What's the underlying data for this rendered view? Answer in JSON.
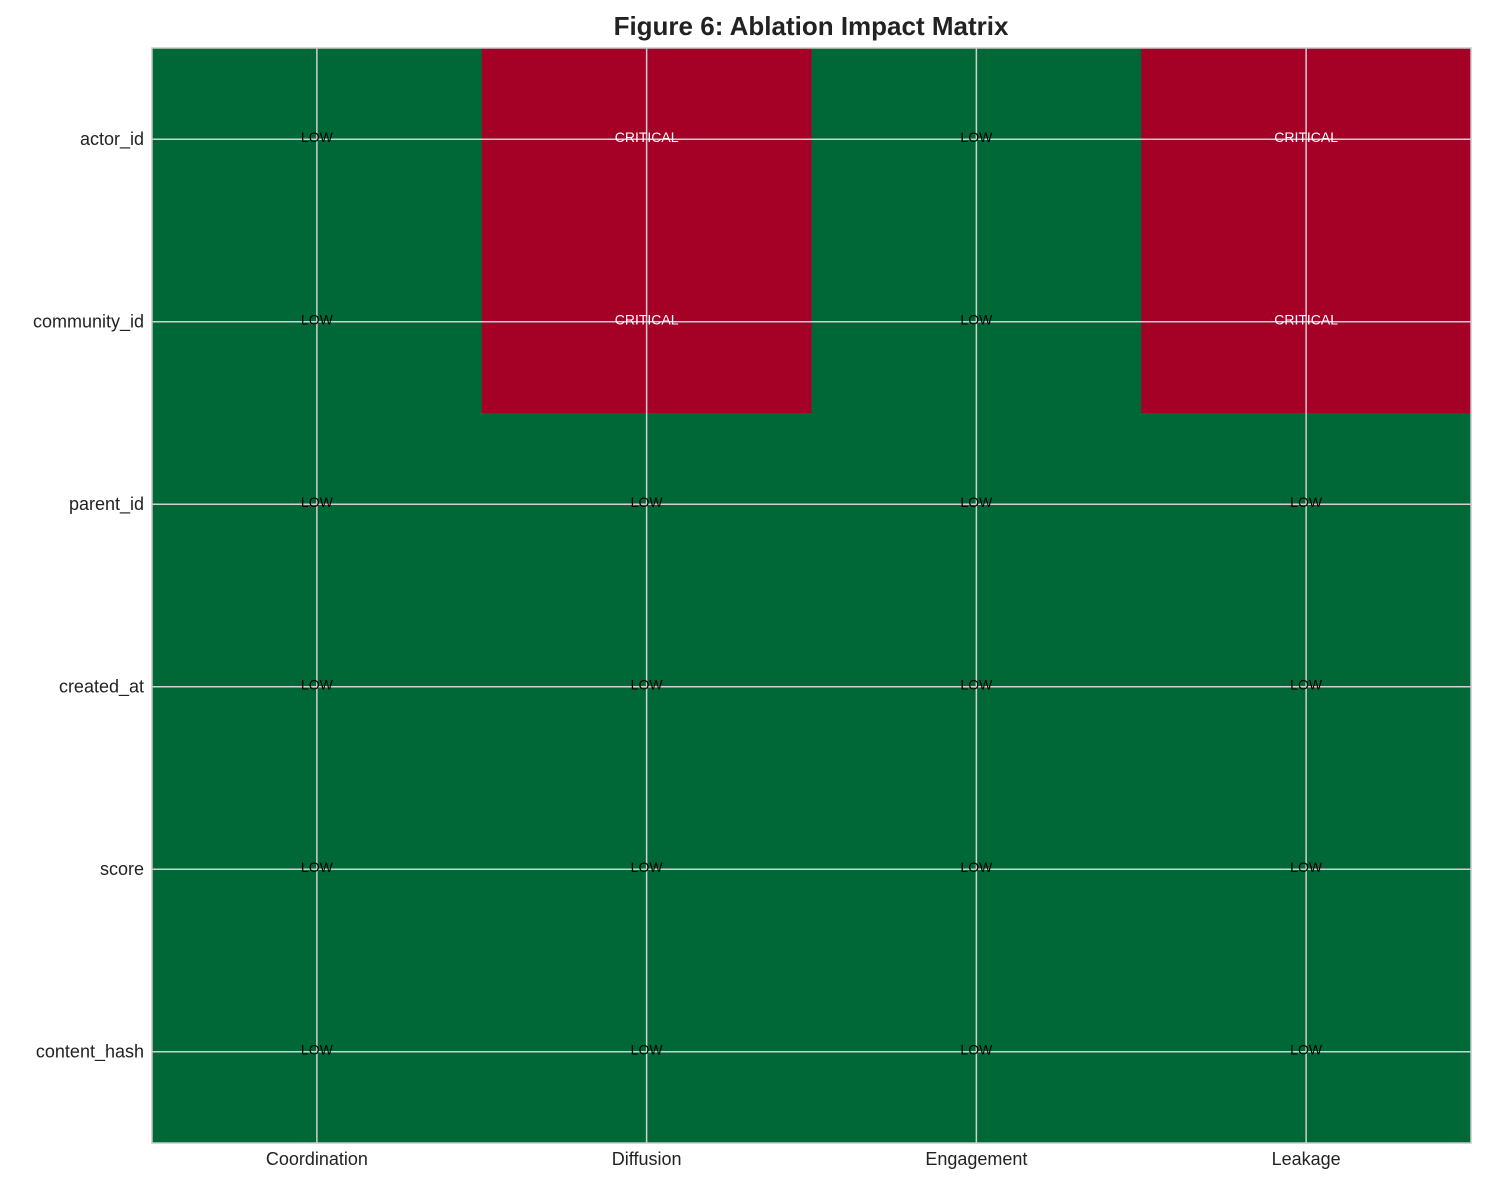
{
  "chart_data": {
    "type": "heatmap",
    "title": "Figure 6: Ablation Impact Matrix",
    "x_categories": [
      "Coordination",
      "Diffusion",
      "Engagement",
      "Leakage"
    ],
    "y_categories": [
      "actor_id",
      "community_id",
      "parent_id",
      "created_at",
      "score",
      "content_hash"
    ],
    "cells": [
      [
        "LOW",
        "CRITICAL",
        "LOW",
        "CRITICAL"
      ],
      [
        "LOW",
        "CRITICAL",
        "LOW",
        "CRITICAL"
      ],
      [
        "LOW",
        "LOW",
        "LOW",
        "LOW"
      ],
      [
        "LOW",
        "LOW",
        "LOW",
        "LOW"
      ],
      [
        "LOW",
        "LOW",
        "LOW",
        "LOW"
      ],
      [
        "LOW",
        "LOW",
        "LOW",
        "LOW"
      ]
    ],
    "cell_colors": {
      "LOW": "#006837",
      "CRITICAL": "#a50026"
    },
    "text_colors": {
      "LOW": "#000000",
      "CRITICAL": "#ffffff"
    },
    "grid": true
  }
}
